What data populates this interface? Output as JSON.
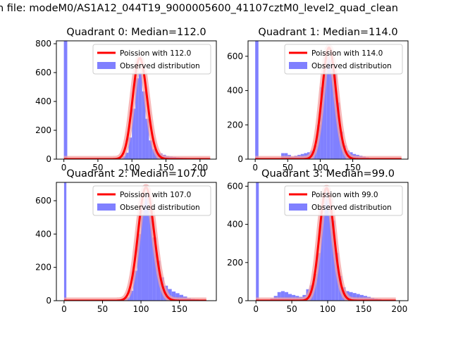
{
  "figure": {
    "suptitle": "n file: modeM0/AS1A12_044T19_9000005600_41107cztM0_level2_quad_clean"
  },
  "colors": {
    "hist_fill": "#8080ff",
    "poisson_line": "#ff0000",
    "poisson_fade": "#f4a0a0"
  },
  "chart_data": [
    {
      "type": "bar+line",
      "title": "Quadrant 0: Median=112.0",
      "xlim": [
        -11,
        224
      ],
      "ylim": [
        0,
        820
      ],
      "xticks": [
        0,
        50,
        100,
        150,
        200
      ],
      "yticks": [
        0,
        200,
        400,
        600,
        800
      ],
      "legend": {
        "position": "top-right",
        "entries": [
          "Poission with 112.0",
          "Observed distribution"
        ]
      },
      "series": [
        {
          "name": "Observed distribution",
          "kind": "histogram",
          "bins": [
            [
              0,
              5,
              820
            ],
            [
              50,
              55,
              2
            ],
            [
              55,
              60,
              3
            ],
            [
              60,
              65,
              4
            ],
            [
              65,
              70,
              5
            ],
            [
              70,
              75,
              6
            ],
            [
              75,
              80,
              8
            ],
            [
              80,
              85,
              12
            ],
            [
              85,
              90,
              20
            ],
            [
              90,
              95,
              45
            ],
            [
              95,
              100,
              150
            ],
            [
              100,
              105,
              350
            ],
            [
              105,
              110,
              560
            ],
            [
              110,
              115,
              600
            ],
            [
              115,
              120,
              470
            ],
            [
              120,
              125,
              280
            ],
            [
              125,
              130,
              130
            ],
            [
              130,
              135,
              70
            ],
            [
              135,
              140,
              45
            ],
            [
              140,
              145,
              40
            ],
            [
              145,
              150,
              30
            ],
            [
              150,
              155,
              22
            ],
            [
              155,
              160,
              18
            ],
            [
              160,
              165,
              15
            ],
            [
              165,
              170,
              12
            ],
            [
              170,
              175,
              10
            ],
            [
              175,
              180,
              9
            ],
            [
              180,
              185,
              8
            ],
            [
              185,
              190,
              7
            ],
            [
              190,
              195,
              6
            ],
            [
              195,
              200,
              5
            ],
            [
              200,
              205,
              4
            ],
            [
              205,
              210,
              3
            ]
          ]
        },
        {
          "name": "Poission with 112.0",
          "kind": "poisson",
          "lambda": 112.0,
          "peak": 700,
          "x_range": [
            0,
            215
          ]
        }
      ]
    },
    {
      "type": "bar+line",
      "title": "Quadrant 1: Median=114.0",
      "xlim": [
        -11,
        235
      ],
      "ylim": [
        0,
        690
      ],
      "xticks": [
        0,
        50,
        100,
        150
      ],
      "yticks": [
        0,
        200,
        400,
        600
      ],
      "legend": {
        "position": "top-right",
        "entries": [
          "Poission with 114.0",
          "Observed distribution"
        ]
      },
      "series": [
        {
          "name": "Observed distribution",
          "kind": "histogram",
          "bins": [
            [
              0,
              5,
              690
            ],
            [
              40,
              45,
              35
            ],
            [
              45,
              50,
              35
            ],
            [
              50,
              55,
              25
            ],
            [
              55,
              60,
              15
            ],
            [
              60,
              65,
              20
            ],
            [
              65,
              70,
              25
            ],
            [
              70,
              75,
              30
            ],
            [
              75,
              80,
              35
            ],
            [
              80,
              85,
              40
            ],
            [
              85,
              90,
              50
            ],
            [
              90,
              95,
              80
            ],
            [
              95,
              100,
              200
            ],
            [
              100,
              105,
              420
            ],
            [
              105,
              110,
              560
            ],
            [
              110,
              115,
              600
            ],
            [
              115,
              120,
              580
            ],
            [
              120,
              125,
              500
            ],
            [
              125,
              130,
              330
            ],
            [
              130,
              135,
              160
            ],
            [
              135,
              140,
              80
            ],
            [
              140,
              145,
              50
            ],
            [
              145,
              150,
              40
            ],
            [
              150,
              155,
              30
            ],
            [
              155,
              160,
              25
            ],
            [
              160,
              165,
              20
            ],
            [
              165,
              170,
              15
            ],
            [
              170,
              175,
              10
            ]
          ]
        },
        {
          "name": "Poission with 114.0",
          "kind": "poisson",
          "lambda": 114.0,
          "peak": 650,
          "x_range": [
            0,
            225
          ]
        }
      ]
    },
    {
      "type": "bar+line",
      "title": "Quadrant 2: Median=107.0",
      "xlim": [
        -10,
        198
      ],
      "ylim": [
        0,
        710
      ],
      "xticks": [
        0,
        50,
        100,
        150
      ],
      "yticks": [
        0,
        200,
        400,
        600
      ],
      "legend": {
        "position": "top-right",
        "entries": [
          "Poission with 107.0",
          "Observed distribution"
        ]
      },
      "series": [
        {
          "name": "Observed distribution",
          "kind": "histogram",
          "bins": [
            [
              0,
              3,
              710
            ],
            [
              55,
              60,
              2
            ],
            [
              60,
              65,
              4
            ],
            [
              65,
              70,
              6
            ],
            [
              70,
              75,
              8
            ],
            [
              75,
              80,
              10
            ],
            [
              80,
              85,
              20
            ],
            [
              85,
              90,
              60
            ],
            [
              90,
              95,
              180
            ],
            [
              95,
              100,
              400
            ],
            [
              100,
              105,
              580
            ],
            [
              105,
              110,
              640
            ],
            [
              110,
              115,
              560
            ],
            [
              115,
              120,
              380
            ],
            [
              120,
              125,
              240
            ],
            [
              125,
              130,
              140
            ],
            [
              130,
              135,
              90
            ],
            [
              135,
              140,
              70
            ],
            [
              140,
              145,
              55
            ],
            [
              145,
              150,
              45
            ],
            [
              150,
              155,
              35
            ],
            [
              155,
              160,
              25
            ],
            [
              160,
              165,
              15
            ],
            [
              165,
              170,
              10
            ],
            [
              170,
              175,
              8
            ],
            [
              175,
              180,
              6
            ],
            [
              180,
              185,
              4
            ]
          ]
        },
        {
          "name": "Poission with 107.0",
          "kind": "poisson",
          "lambda": 107.0,
          "peak": 680,
          "x_range": [
            0,
            185
          ]
        }
      ]
    },
    {
      "type": "bar+line",
      "title": "Quadrant 3: Median=99.0",
      "xlim": [
        -11,
        212
      ],
      "ylim": [
        0,
        620
      ],
      "xticks": [
        0,
        50,
        100,
        150,
        200
      ],
      "yticks": [
        0,
        200,
        400,
        600
      ],
      "legend": {
        "position": "top-right",
        "entries": [
          "Poission with 99.0",
          "Observed distribution"
        ]
      },
      "series": [
        {
          "name": "Observed distribution",
          "kind": "histogram",
          "bins": [
            [
              0,
              4,
              620
            ],
            [
              10,
              15,
              3
            ],
            [
              15,
              20,
              5
            ],
            [
              20,
              25,
              12
            ],
            [
              25,
              30,
              25
            ],
            [
              30,
              35,
              45
            ],
            [
              35,
              40,
              50
            ],
            [
              40,
              45,
              45
            ],
            [
              45,
              50,
              35
            ],
            [
              50,
              55,
              30
            ],
            [
              55,
              60,
              25
            ],
            [
              60,
              65,
              20
            ],
            [
              65,
              70,
              30
            ],
            [
              70,
              75,
              60
            ],
            [
              75,
              80,
              80
            ],
            [
              80,
              85,
              140
            ],
            [
              85,
              90,
              250
            ],
            [
              90,
              95,
              450
            ],
            [
              95,
              100,
              590
            ],
            [
              100,
              105,
              560
            ],
            [
              105,
              110,
              420
            ],
            [
              110,
              115,
              250
            ],
            [
              115,
              120,
              130
            ],
            [
              120,
              125,
              70
            ],
            [
              125,
              130,
              50
            ],
            [
              130,
              135,
              45
            ],
            [
              135,
              140,
              40
            ],
            [
              140,
              145,
              35
            ],
            [
              145,
              150,
              30
            ],
            [
              150,
              155,
              25
            ],
            [
              155,
              160,
              20
            ],
            [
              160,
              165,
              15
            ],
            [
              165,
              170,
              10
            ],
            [
              170,
              175,
              8
            ]
          ]
        },
        {
          "name": "Poission with 99.0",
          "kind": "poisson",
          "lambda": 99.0,
          "peak": 590,
          "x_range": [
            0,
            195
          ]
        }
      ]
    }
  ]
}
